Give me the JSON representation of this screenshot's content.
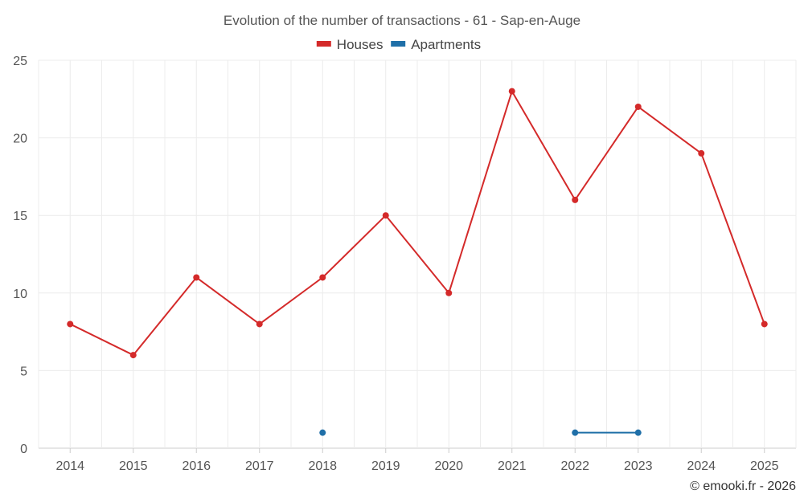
{
  "chart_data": {
    "type": "line",
    "title": "Evolution of the number of transactions - 61 - Sap-en-Auge",
    "x": [
      "2014",
      "2015",
      "2016",
      "2017",
      "2018",
      "2019",
      "2020",
      "2021",
      "2022",
      "2023",
      "2024",
      "2025"
    ],
    "ylim": [
      0,
      25
    ],
    "yticks": [
      0,
      5,
      10,
      15,
      20,
      25
    ],
    "grid": true,
    "legend_position": "top-center",
    "series": [
      {
        "name": "Houses",
        "color": "#d42a2a",
        "values": [
          8,
          6,
          11,
          8,
          11,
          15,
          10,
          23,
          16,
          22,
          19,
          8
        ]
      },
      {
        "name": "Apartments",
        "color": "#1f6fa8",
        "values": [
          null,
          null,
          null,
          null,
          1,
          null,
          null,
          null,
          1,
          1,
          null,
          null
        ]
      }
    ]
  },
  "credit": "© emooki.fr - 2026"
}
